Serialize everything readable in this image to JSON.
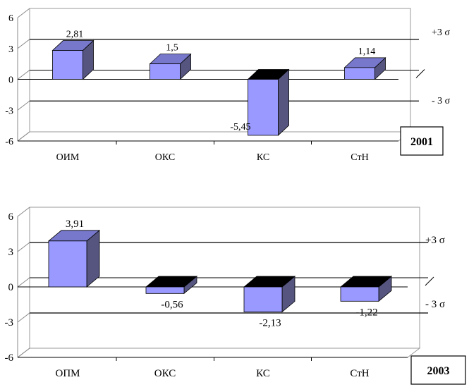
{
  "chart_data": [
    {
      "type": "bar",
      "title": "2001",
      "categories": [
        "ОИМ",
        "ОКС",
        "КС",
        "СтН"
      ],
      "values": [
        2.81,
        1.5,
        -5.45,
        1.14
      ],
      "value_labels": [
        "2,81",
        "1,5",
        "-5,45",
        "1,14"
      ],
      "yticks": [
        "6",
        "3",
        "0",
        "-3",
        "-6"
      ],
      "ylim": [
        -6,
        6
      ],
      "sigma_labels": [
        "+3 σ",
        "- 3 σ"
      ],
      "sigma_values": [
        3,
        -3
      ],
      "colors": {
        "front": "#9999ff",
        "side": "#555580",
        "top_pos": "#7777cc",
        "top_neg": "#000000"
      }
    },
    {
      "type": "bar",
      "title": "2003",
      "categories": [
        "ОПМ",
        "ОКС",
        "КС",
        "СтН"
      ],
      "values": [
        3.91,
        -0.56,
        -2.13,
        -1.22
      ],
      "value_labels": [
        "3,91",
        "-0,56",
        "-2,13",
        "-1,22"
      ],
      "yticks": [
        "6",
        "3",
        "0",
        "-3",
        "-6"
      ],
      "ylim": [
        -6,
        6
      ],
      "sigma_labels": [
        "+3 σ",
        "- 3 σ"
      ],
      "sigma_values": [
        3,
        -3
      ],
      "colors": {
        "front": "#9999ff",
        "side": "#555580",
        "top_pos": "#7777cc",
        "top_neg": "#000000"
      }
    }
  ]
}
